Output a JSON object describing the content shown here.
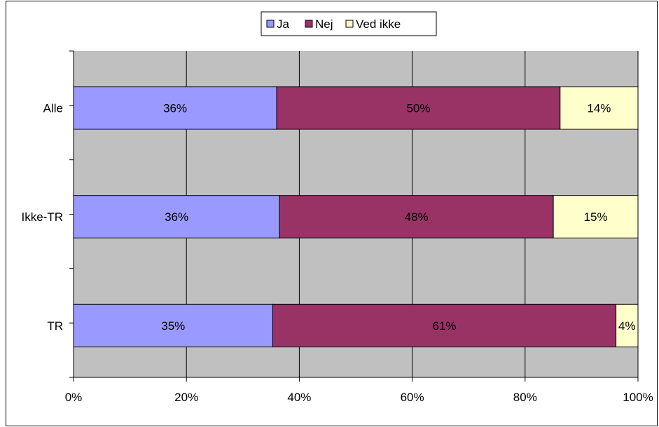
{
  "chart_data": {
    "type": "bar",
    "orientation": "horizontal",
    "stacked": true,
    "title": "",
    "xlabel": "",
    "ylabel": "",
    "categories": [
      "Alle",
      "Ikke-TR",
      "TR"
    ],
    "series": [
      {
        "name": "Ja",
        "color": "#9999ff",
        "values": [
          36,
          36.5,
          35.3
        ],
        "labels": [
          "36%",
          "36%",
          "35%"
        ],
        "label_color": "#000000"
      },
      {
        "name": "Nej",
        "color": "#993366",
        "values": [
          50.2,
          48.5,
          60.8
        ],
        "labels": [
          "50%",
          "48%",
          "61%"
        ],
        "label_color": "#ffffff"
      },
      {
        "name": "Ved ikke",
        "color": "#ffffcc",
        "values": [
          13.8,
          15,
          3.9
        ],
        "labels": [
          "14%",
          "15%",
          "4%"
        ],
        "label_color": "#000000"
      }
    ],
    "xlim": [
      0,
      100
    ],
    "xticks": [
      0,
      20,
      40,
      60,
      80,
      100
    ],
    "xtick_labels": [
      "0%",
      "20%",
      "40%",
      "60%",
      "80%",
      "100%"
    ],
    "grid": true,
    "plot_background": "#c0c0c0",
    "legend_position": "top-center"
  }
}
